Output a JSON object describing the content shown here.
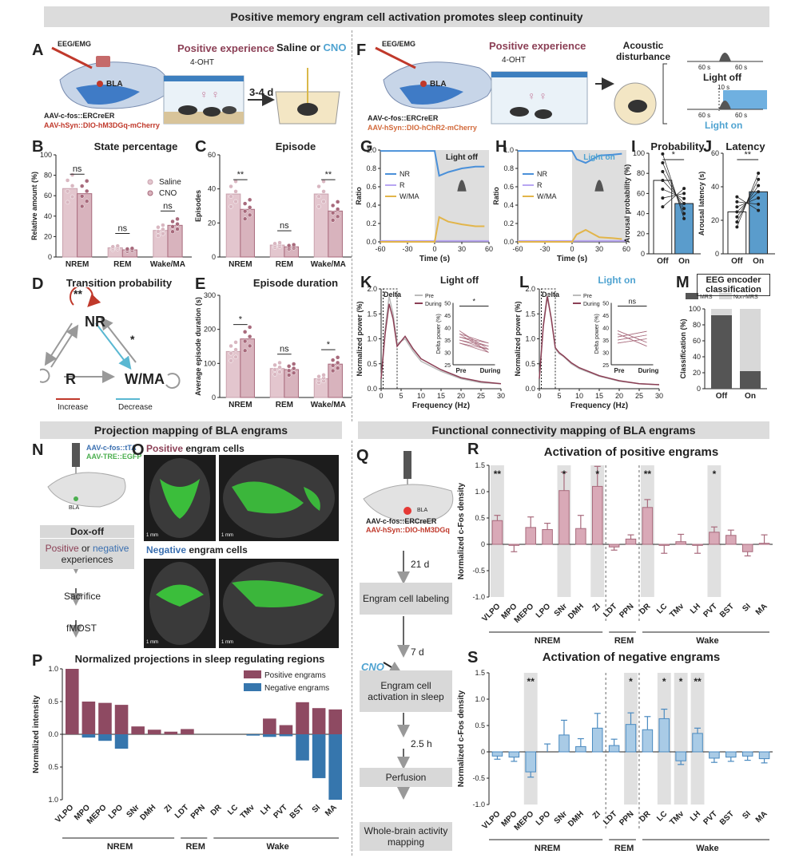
{
  "colors": {
    "pos": "#a86a7c",
    "posLight": "#e3c6ce",
    "posFill": "#d8b3bd",
    "neg": "#5a9ccc",
    "negLight": "#b9d6ec",
    "grey": "#dcdcdc",
    "nrLine": "#4a90d9",
    "rLine": "#b8a6f2",
    "wLine": "#e2b54a"
  },
  "banners": {
    "top": "Positive memory engram cell activation promotes sleep continuity",
    "proj": "Projection mapping of  BLA engrams",
    "func": "Functional connectivity mapping of BLA engrams"
  },
  "panelA": {
    "label": "A",
    "eeg": "EEG/EMG",
    "bla": "BLA",
    "pos_exp": "Positive experience",
    "ohtr": "4-OHT",
    "saline": "Saline or",
    "cno": "CNO",
    "days": "3-4 d",
    "aav1": "AAV-c-fos::ERCreER",
    "aav2": "AAV-hSyn::DIO-hM3DGq-mCherry"
  },
  "panelF": {
    "label": "F",
    "eeg": "EEG/EMG",
    "bla": "BLA",
    "pos_exp": "Positive experience",
    "ohtr": "4-OHT",
    "acoustic": "Acoustic disturbance",
    "s60a": "60 s",
    "s60b": "60 s",
    "light_off": "Light off",
    "s10": "10 s",
    "s60c": "60 s",
    "s60d": "60 s",
    "light_on": "Light on",
    "aav1": "AAV-c-fos::ERCreER",
    "aav2": "AAV-hSyn::DIO-hChR2-mCherry"
  },
  "panelB": {
    "label": "B",
    "title": "State percentage",
    "ylabel": "Relative amount (%)",
    "legend": [
      "Saline",
      "CNO"
    ],
    "sig": [
      "ns",
      "ns",
      "ns"
    ]
  },
  "panelC": {
    "label": "C",
    "title": "Episode",
    "ylabel": "Episodes",
    "sig": [
      "**",
      "ns",
      "**"
    ]
  },
  "panelD": {
    "label": "D",
    "title": "Transition probability",
    "nr": "NR",
    "r": "R",
    "w": "W/MA",
    "star1": "**",
    "star2": "*",
    "inc": "Increase",
    "dec": "Decrease"
  },
  "panelE": {
    "label": "E",
    "title": "Episode duration",
    "ylabel": "Average episode duration (s)",
    "sig": [
      "*",
      "ns",
      "*"
    ]
  },
  "panelG": {
    "label": "G",
    "box": "Light off",
    "ylabel": "Ratio",
    "xlabel": "Time (s)",
    "legend": [
      "NR",
      "R",
      "W/MA"
    ]
  },
  "panelH": {
    "label": "H",
    "box": "Light on",
    "ylabel": "Ratio",
    "xlabel": "Time (s)",
    "legend": [
      "NR",
      "R",
      "W/MA"
    ]
  },
  "panelI": {
    "label": "I",
    "title": "Probability",
    "ylabel": "Arousal probability (%)",
    "sig": "*"
  },
  "panelJ": {
    "label": "J",
    "title": "Latency",
    "ylabel": "Arousal latency (s)",
    "sig": "**"
  },
  "panelK": {
    "label": "K",
    "title": "Light off",
    "ylabel": "Normalized power (%)",
    "xlabel": "Frequency (Hz)",
    "delta": "Delta",
    "legend": [
      "Pre",
      "During"
    ],
    "inset_ylabel": "Delta power (%)",
    "inset_x": [
      "Pre",
      "During"
    ],
    "sig": "*"
  },
  "panelL": {
    "label": "L",
    "title": "Light on",
    "ylabel": "Normalized power (%)",
    "xlabel": "Frequency (Hz)",
    "delta": "Delta",
    "legend": [
      "Pre",
      "During"
    ],
    "inset_ylabel": "Delta power (%)",
    "inset_x": [
      "Pre",
      "During"
    ],
    "sig": "ns"
  },
  "panelM": {
    "label": "M",
    "title": "EEG encoder classification",
    "legend": [
      "MRS",
      "Non-MRS"
    ],
    "ylabel": "Classification (%)"
  },
  "panelN": {
    "label": "N",
    "aav1": "AAV-c-fos::tTA",
    "aav2": "AAV-TRE::EGFP",
    "bla": "BLA",
    "dox": "Dox-off",
    "exp1": "Positive",
    "exp2": " or ",
    "exp3": "negative",
    "exp4": "experiences",
    "sac": "Sacrifice",
    "fmost": "fMOST"
  },
  "panelO": {
    "label": "O",
    "pos": "Positive",
    "pos_rest": " engram cells",
    "neg": "Negative",
    "neg_rest": " engram cells",
    "scale": "1 mm"
  },
  "panelP": {
    "label": "P",
    "title": "Normalized projections in sleep regulating regions",
    "ylabel": "Normalized intensity",
    "legend": [
      "Positive engrams",
      "Negative engrams"
    ],
    "groups": [
      "NREM",
      "REM",
      "Wake"
    ]
  },
  "panelQ": {
    "label": "Q",
    "aav1": "AAV-c-fos::ERCreER",
    "aav2": "AAV-hSyn::DIO-hM3DGq",
    "bla": "BLA",
    "steps": [
      "21 d",
      "Engram cell labeling",
      "7 d",
      "Engram cell activation in sleep",
      "2.5 h",
      "Perfusion",
      "Whole-brain activity mapping"
    ],
    "cno": "CNO"
  },
  "panelR": {
    "label": "R",
    "title": "Activation of positive engrams",
    "ylabel": "Normalized c-Fos density",
    "groups": [
      "NREM",
      "REM",
      "Wake"
    ]
  },
  "panelS": {
    "label": "S",
    "title": "Activation of negative engrams",
    "ylabel": "Normalized c-Fos density",
    "groups": [
      "NREM",
      "REM",
      "Wake"
    ]
  },
  "chart_data": [
    {
      "id": "B",
      "type": "bar",
      "categories": [
        "NREM",
        "REM",
        "Wake/MA"
      ],
      "ylim": [
        0,
        100
      ],
      "series": [
        {
          "name": "Saline",
          "values": [
            67,
            9,
            26
          ]
        },
        {
          "name": "CNO",
          "values": [
            62,
            7,
            31
          ]
        }
      ]
    },
    {
      "id": "C",
      "type": "bar",
      "categories": [
        "NREM",
        "REM",
        "Wake/MA"
      ],
      "ylim": [
        0,
        60
      ],
      "series": [
        {
          "name": "Saline",
          "values": [
            37,
            7,
            37
          ]
        },
        {
          "name": "CNO",
          "values": [
            28,
            6,
            27
          ]
        }
      ]
    },
    {
      "id": "E",
      "type": "bar",
      "categories": [
        "NREM",
        "REM",
        "Wake/MA"
      ],
      "ylim": [
        0,
        300
      ],
      "series": [
        {
          "name": "Saline",
          "values": [
            135,
            85,
            55
          ]
        },
        {
          "name": "CNO",
          "values": [
            172,
            82,
            98
          ]
        }
      ]
    },
    {
      "id": "G",
      "type": "line",
      "xlim": [
        -60,
        60
      ],
      "ylim": [
        0,
        1.0
      ],
      "series": [
        {
          "name": "NR",
          "x": [
            -60,
            0,
            5,
            15,
            30,
            45,
            55
          ],
          "y": [
            0.99,
            0.99,
            0.72,
            0.76,
            0.8,
            0.82,
            0.82
          ]
        },
        {
          "name": "R",
          "x": [
            -60,
            60
          ],
          "y": [
            0.01,
            0.01
          ]
        },
        {
          "name": "W/MA",
          "x": [
            -60,
            0,
            5,
            15,
            30,
            45,
            55
          ],
          "y": [
            0,
            0,
            0.27,
            0.22,
            0.19,
            0.17,
            0.17
          ]
        }
      ]
    },
    {
      "id": "H",
      "type": "line",
      "xlim": [
        -60,
        60
      ],
      "ylim": [
        0,
        1.0
      ],
      "series": [
        {
          "name": "NR",
          "x": [
            -60,
            0,
            5,
            15,
            30,
            45,
            55
          ],
          "y": [
            0.99,
            0.99,
            0.9,
            0.86,
            0.94,
            0.95,
            0.96
          ]
        },
        {
          "name": "R",
          "x": [
            -60,
            60
          ],
          "y": [
            0.01,
            0.01
          ]
        },
        {
          "name": "W/MA",
          "x": [
            -60,
            0,
            5,
            15,
            30,
            45,
            55
          ],
          "y": [
            0,
            0,
            0.08,
            0.13,
            0.05,
            0.04,
            0.03
          ]
        }
      ]
    },
    {
      "id": "I",
      "type": "bar",
      "categories": [
        "Off",
        "On"
      ],
      "ylim": [
        0,
        100
      ],
      "values": [
        73,
        50
      ]
    },
    {
      "id": "J",
      "type": "bar",
      "categories": [
        "Off",
        "On"
      ],
      "ylim": [
        0,
        60
      ],
      "values": [
        25,
        37
      ]
    },
    {
      "id": "K",
      "type": "line",
      "xlim": [
        0,
        30
      ],
      "ylim": [
        0,
        2.0
      ],
      "series": [
        {
          "name": "Pre",
          "x": [
            0,
            1,
            2,
            3,
            4,
            5,
            6,
            8,
            10,
            15,
            20,
            25,
            30
          ],
          "y": [
            0.2,
            1.2,
            1.85,
            1.5,
            0.9,
            0.95,
            1.0,
            0.75,
            0.55,
            0.35,
            0.2,
            0.12,
            0.1
          ]
        },
        {
          "name": "During",
          "x": [
            0,
            1,
            2,
            3,
            4,
            5,
            6,
            8,
            10,
            15,
            20,
            25,
            30
          ],
          "y": [
            0.2,
            1.1,
            1.7,
            1.4,
            0.85,
            0.95,
            1.05,
            0.8,
            0.6,
            0.38,
            0.22,
            0.14,
            0.1
          ]
        }
      ]
    },
    {
      "id": "L",
      "type": "line",
      "xlim": [
        0,
        30
      ],
      "ylim": [
        0,
        2.0
      ],
      "series": [
        {
          "name": "Pre",
          "x": [
            0,
            1,
            2,
            3,
            4,
            5,
            6,
            8,
            10,
            15,
            20,
            25,
            30
          ],
          "y": [
            0.2,
            1.3,
            1.9,
            1.4,
            0.8,
            0.7,
            0.65,
            0.5,
            0.4,
            0.25,
            0.15,
            0.1,
            0.08
          ]
        },
        {
          "name": "During",
          "x": [
            0,
            1,
            2,
            3,
            4,
            5,
            6,
            8,
            10,
            15,
            20,
            25,
            30
          ],
          "y": [
            0.2,
            1.25,
            1.85,
            1.4,
            0.82,
            0.72,
            0.66,
            0.52,
            0.42,
            0.26,
            0.16,
            0.1,
            0.08
          ]
        }
      ]
    },
    {
      "id": "M",
      "type": "bar",
      "categories": [
        "Off",
        "On"
      ],
      "ylim": [
        0,
        100
      ],
      "series": [
        {
          "name": "MRS",
          "values": [
            92,
            22
          ]
        },
        {
          "name": "Non-MRS",
          "values": [
            8,
            78
          ]
        }
      ]
    },
    {
      "id": "P",
      "type": "bar",
      "categories": [
        "VLPO",
        "MPO",
        "MEPO",
        "LPO",
        "SNr",
        "DMH",
        "ZI",
        "LDT",
        "PPN",
        "DR",
        "LC",
        "TMv",
        "LH",
        "PVT",
        "BST",
        "SI",
        "MA"
      ],
      "ylim": [
        -1,
        1
      ],
      "series": [
        {
          "name": "Positive engrams",
          "values": [
            1.0,
            0.5,
            0.48,
            0.45,
            0.12,
            0.07,
            0.04,
            0.08,
            0,
            0,
            0,
            0,
            0.24,
            0.14,
            0.49,
            0.4,
            0.38
          ]
        },
        {
          "name": "Negative engrams",
          "values": [
            0,
            0.05,
            0.1,
            0.22,
            0,
            0,
            0,
            0,
            0,
            0,
            0,
            0.02,
            0.04,
            0.03,
            0.4,
            0.67,
            1.0
          ]
        }
      ]
    },
    {
      "id": "R",
      "type": "bar",
      "categories": [
        "VLPO",
        "MPO",
        "MEPO",
        "LPO",
        "SNr",
        "DMH",
        "ZI",
        "LDT",
        "PPN",
        "DR",
        "LC",
        "TMv",
        "LH",
        "PVT",
        "BST",
        "SI",
        "MA"
      ],
      "ylim": [
        -1,
        1.5
      ],
      "values": [
        0.45,
        -0.02,
        0.32,
        0.28,
        1.02,
        0.3,
        1.1,
        -0.05,
        0.1,
        0.7,
        -0.02,
        0.05,
        -0.02,
        0.23,
        0.17,
        -0.14,
        0.02
      ],
      "errors": [
        0.1,
        0.12,
        0.2,
        0.12,
        0.35,
        0.25,
        0.38,
        0.06,
        0.08,
        0.15,
        0.15,
        0.14,
        0.15,
        0.1,
        0.1,
        0.08,
        0.16
      ]
    },
    {
      "id": "S",
      "type": "bar",
      "categories": [
        "VLPO",
        "MPO",
        "MEPO",
        "LPO",
        "SNr",
        "DMH",
        "ZI",
        "LDT",
        "PPN",
        "DR",
        "LC",
        "TMv",
        "LH",
        "PVT",
        "BST",
        "SI",
        "MA"
      ],
      "ylim": [
        -1,
        1.5
      ],
      "values": [
        -0.08,
        -0.1,
        -0.38,
        0,
        0.32,
        0.1,
        0.45,
        0.12,
        0.52,
        0.42,
        0.63,
        -0.17,
        0.35,
        -0.12,
        -0.1,
        -0.08,
        -0.13
      ],
      "errors": [
        0.06,
        0.08,
        0.1,
        0.15,
        0.28,
        0.15,
        0.28,
        0.12,
        0.22,
        0.25,
        0.18,
        0.07,
        0.1,
        0.08,
        0.08,
        0.08,
        0.08
      ]
    }
  ]
}
